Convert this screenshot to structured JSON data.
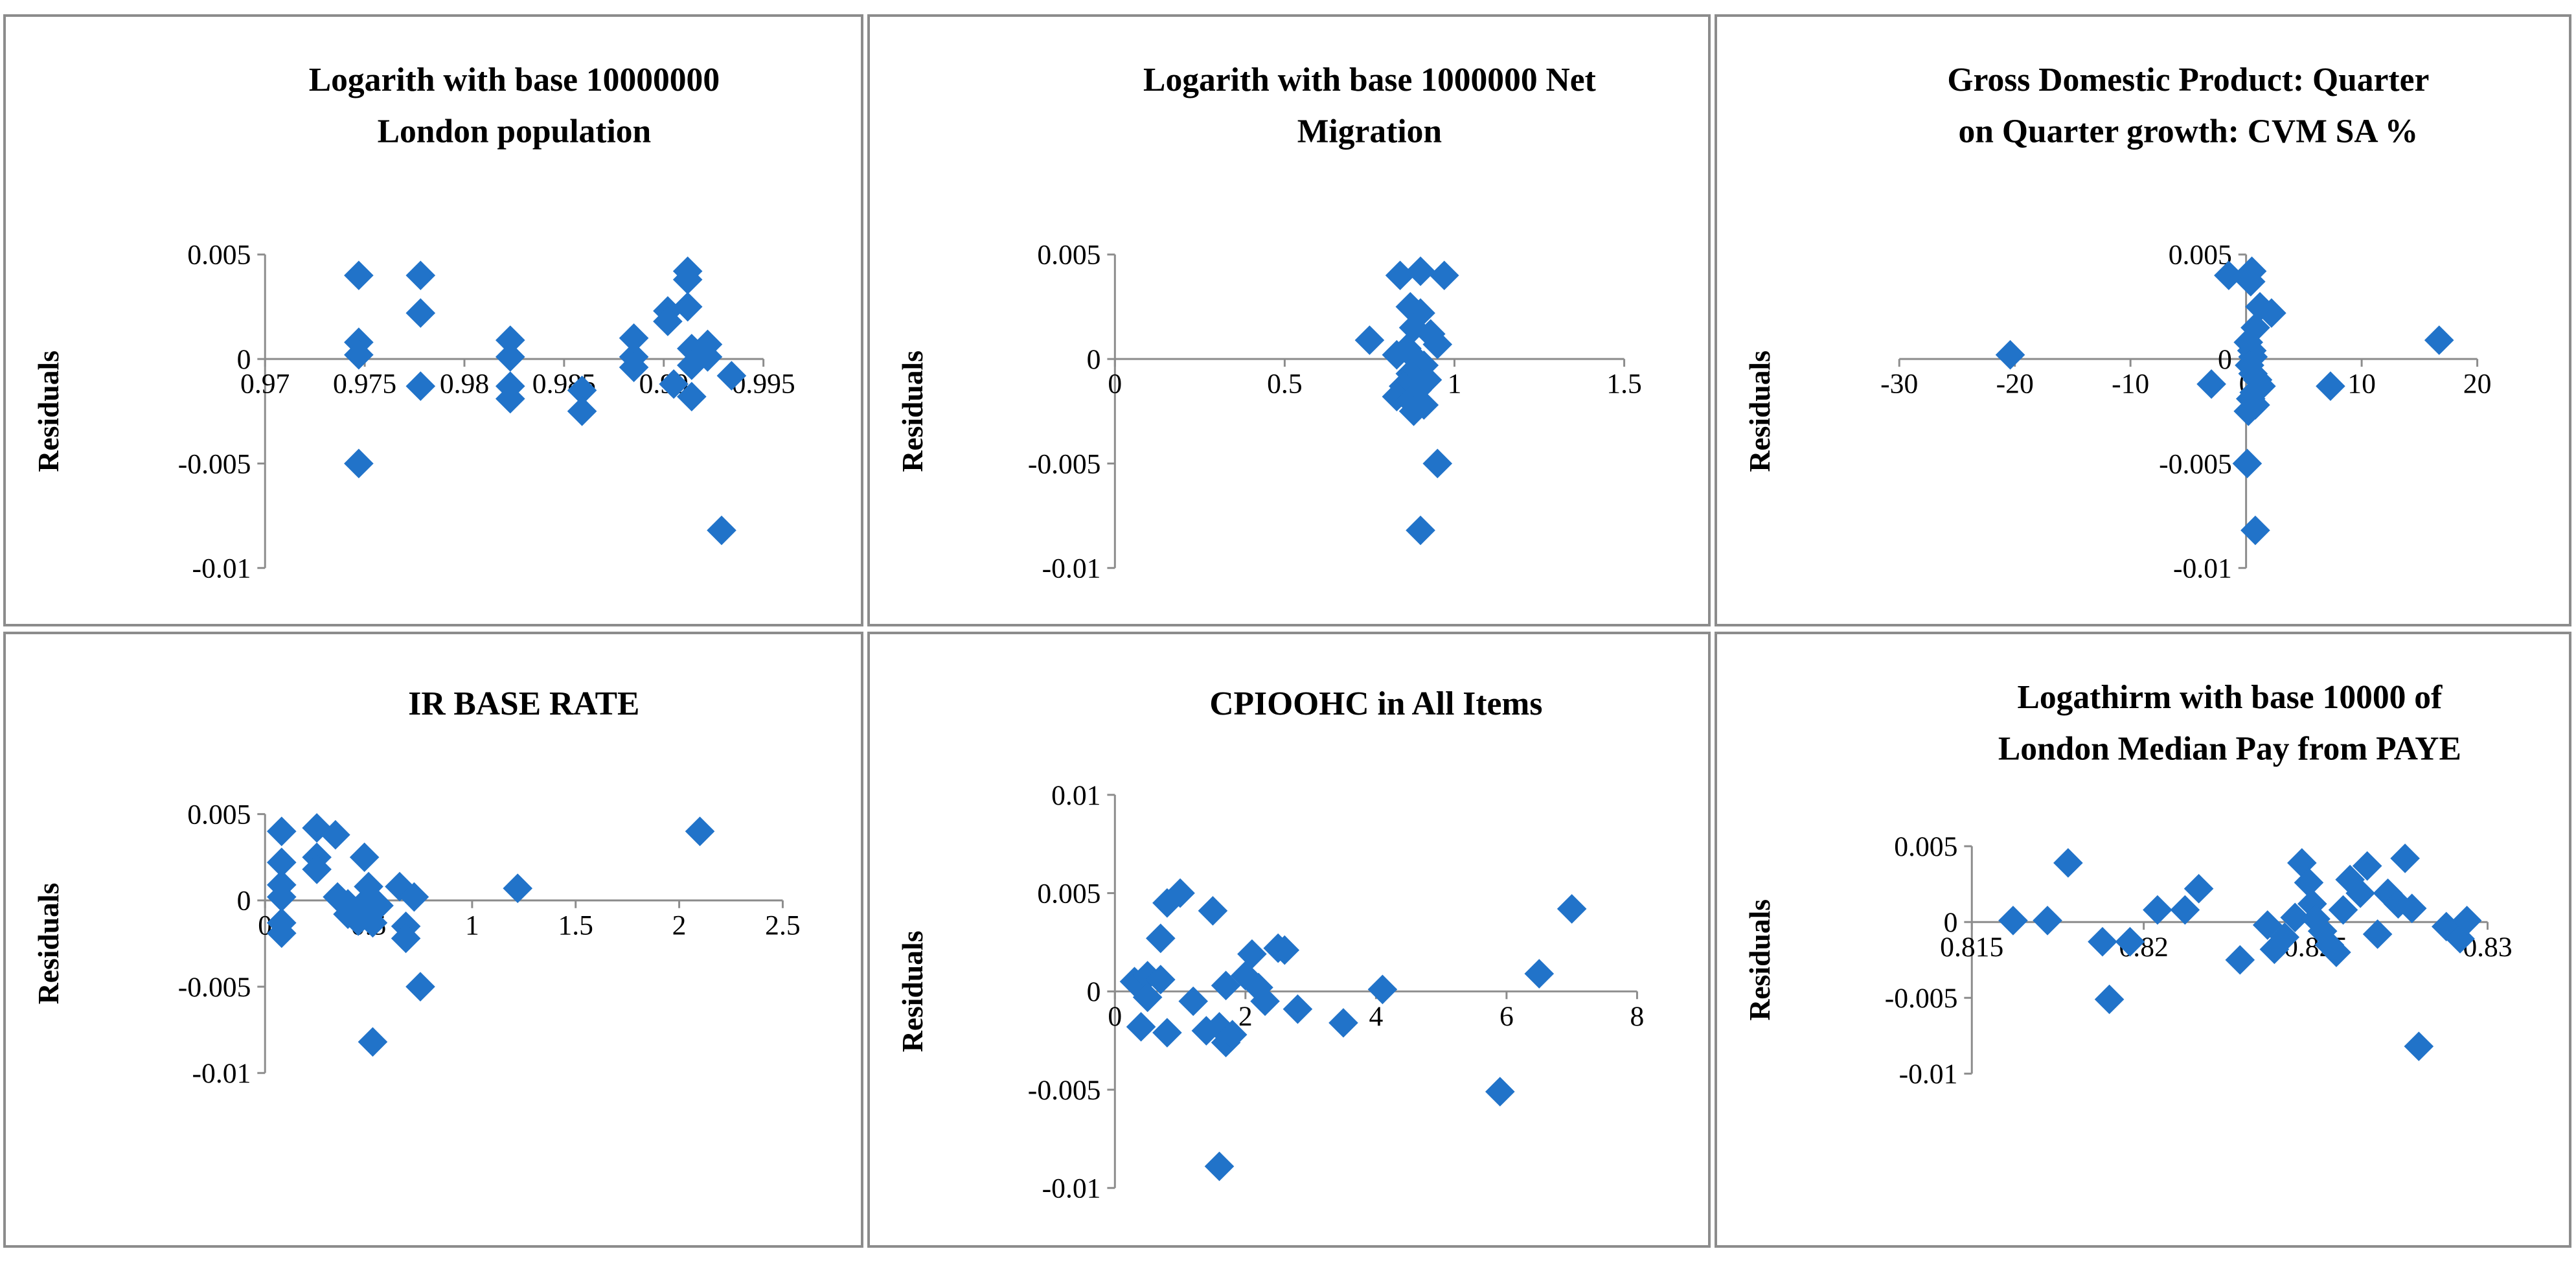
{
  "colors": {
    "marker": "#2173c9",
    "axis": "#8c8c8c",
    "border": "#8c8c8c"
  },
  "chart_data": [
    {
      "type": "scatter",
      "title_lines": [
        "Logarith with base 10000000",
        "London population"
      ],
      "ylabel": "Residuals",
      "xlim": [
        0.97,
        0.995
      ],
      "ylim": [
        -0.01,
        0.005
      ],
      "x_ticks": [
        0.97,
        0.975,
        0.98,
        0.985,
        0.99,
        0.995
      ],
      "x_tick_labels": [
        "0.97",
        "0.975",
        "0.98",
        "0.985",
        "0.99",
        "0.995"
      ],
      "y_ticks": [
        0.005,
        0,
        -0.005,
        -0.01
      ],
      "y_tick_labels": [
        "0.005",
        "0",
        "-0.005",
        "-0.01"
      ],
      "points": [
        [
          0.9747,
          0.004
        ],
        [
          0.9747,
          0.0008
        ],
        [
          0.9747,
          0.0002
        ],
        [
          0.9747,
          -0.005
        ],
        [
          0.9778,
          0.004
        ],
        [
          0.9778,
          0.0022
        ],
        [
          0.9778,
          -0.0013
        ],
        [
          0.9823,
          0.0009
        ],
        [
          0.9823,
          0.0001
        ],
        [
          0.9823,
          -0.0013
        ],
        [
          0.9823,
          -0.0019
        ],
        [
          0.9859,
          -0.0015
        ],
        [
          0.9859,
          -0.0025
        ],
        [
          0.9885,
          0.001
        ],
        [
          0.9885,
          0.0001
        ],
        [
          0.9885,
          -0.0004
        ],
        [
          0.9902,
          0.0023
        ],
        [
          0.9902,
          0.0018
        ],
        [
          0.9905,
          -0.0012
        ],
        [
          0.9912,
          0.0042
        ],
        [
          0.9912,
          0.0038
        ],
        [
          0.9912,
          0.0025
        ],
        [
          0.9914,
          0.0005
        ],
        [
          0.9914,
          -0.0003
        ],
        [
          0.9914,
          -0.0018
        ],
        [
          0.9922,
          0.0007
        ],
        [
          0.9922,
          0.0001
        ],
        [
          0.9934,
          -0.0008
        ],
        [
          0.9929,
          -0.0082
        ]
      ]
    },
    {
      "type": "scatter",
      "title_lines": [
        "Logarith with base 1000000 Net",
        "Migration"
      ],
      "ylabel": "Residuals",
      "xlim": [
        0,
        1.5
      ],
      "ylim": [
        -0.01,
        0.005
      ],
      "x_ticks": [
        0,
        0.5,
        1,
        1.5
      ],
      "x_tick_labels": [
        "0",
        "0.5",
        "1",
        "1.5"
      ],
      "y_ticks": [
        0.005,
        0,
        -0.005,
        -0.01
      ],
      "y_tick_labels": [
        "0.005",
        "0",
        "-0.005",
        "-0.01"
      ],
      "points": [
        [
          0.75,
          0.0009
        ],
        [
          0.84,
          0.004
        ],
        [
          0.9,
          0.0042
        ],
        [
          0.97,
          0.004
        ],
        [
          0.87,
          0.0025
        ],
        [
          0.9,
          0.0022
        ],
        [
          0.88,
          0.0015
        ],
        [
          0.93,
          0.0012
        ],
        [
          0.86,
          0.0005
        ],
        [
          0.95,
          0.0007
        ],
        [
          0.83,
          0.0002
        ],
        [
          0.88,
          0.0001
        ],
        [
          0.91,
          -0.0003
        ],
        [
          0.87,
          -0.0007
        ],
        [
          0.92,
          -0.001
        ],
        [
          0.85,
          -0.0013
        ],
        [
          0.89,
          -0.0015
        ],
        [
          0.83,
          -0.0018
        ],
        [
          0.87,
          -0.002
        ],
        [
          0.91,
          -0.0022
        ],
        [
          0.88,
          -0.0025
        ],
        [
          0.95,
          -0.005
        ],
        [
          0.9,
          -0.0082
        ]
      ]
    },
    {
      "type": "scatter",
      "title_lines": [
        "Gross Domestic Product: Quarter",
        "on Quarter growth: CVM SA %"
      ],
      "ylabel": "Residuals",
      "xlim": [
        -30,
        20
      ],
      "ylim": [
        -0.01,
        0.005
      ],
      "x_ticks": [
        -30,
        -20,
        -10,
        0,
        10,
        20
      ],
      "x_tick_labels": [
        "-30",
        "-20",
        "-10",
        "0",
        "10",
        "20"
      ],
      "y_ticks": [
        0.005,
        0,
        -0.005,
        -0.01
      ],
      "y_tick_labels": [
        "0.005",
        "0",
        "-0.005",
        "-0.01"
      ],
      "points": [
        [
          -20.4,
          0.0002
        ],
        [
          -3,
          -0.0012
        ],
        [
          -1.5,
          0.004
        ],
        [
          0.5,
          0.0042
        ],
        [
          0.4,
          0.0037
        ],
        [
          1.2,
          0.0025
        ],
        [
          2.2,
          0.0022
        ],
        [
          0.8,
          0.0015
        ],
        [
          0.2,
          0.0008
        ],
        [
          0.5,
          0.0004
        ],
        [
          0.6,
          0.0001
        ],
        [
          0.3,
          -0.0003
        ],
        [
          0.6,
          -0.0007
        ],
        [
          1.0,
          -0.001
        ],
        [
          1.3,
          -0.0013
        ],
        [
          0.7,
          -0.0016
        ],
        [
          0.4,
          -0.0019
        ],
        [
          0.8,
          -0.0022
        ],
        [
          0.2,
          -0.0025
        ],
        [
          0.1,
          -0.005
        ],
        [
          0.8,
          -0.0082
        ],
        [
          7.3,
          -0.0013
        ],
        [
          16.7,
          0.0009
        ]
      ]
    },
    {
      "type": "scatter",
      "title_lines": [
        "IR BASE RATE"
      ],
      "ylabel": "Residuals",
      "xlim": [
        0,
        2.5
      ],
      "ylim": [
        -0.01,
        0.005
      ],
      "x_ticks": [
        0,
        0.5,
        1,
        1.5,
        2,
        2.5
      ],
      "x_tick_labels": [
        "0",
        "0.5",
        "1",
        "1.5",
        "2",
        "2.5"
      ],
      "y_ticks": [
        0.005,
        0,
        -0.005,
        -0.01
      ],
      "y_tick_labels": [
        "0.005",
        "0",
        "-0.005",
        "-0.01"
      ],
      "points": [
        [
          0.08,
          0.004
        ],
        [
          0.08,
          0.0022
        ],
        [
          0.08,
          0.0009
        ],
        [
          0.08,
          0.0002
        ],
        [
          0.08,
          -0.0013
        ],
        [
          0.08,
          -0.0019
        ],
        [
          0.25,
          0.0042
        ],
        [
          0.25,
          0.0025
        ],
        [
          0.25,
          0.0018
        ],
        [
          0.34,
          0.0038
        ],
        [
          0.35,
          0.0002
        ],
        [
          0.4,
          -0.0002
        ],
        [
          0.4,
          -0.0008
        ],
        [
          0.45,
          -0.0012
        ],
        [
          0.48,
          0.0025
        ],
        [
          0.5,
          0.0008
        ],
        [
          0.5,
          -0.0005
        ],
        [
          0.5,
          0.0001
        ],
        [
          0.52,
          -0.0013
        ],
        [
          0.55,
          -0.0003
        ],
        [
          0.65,
          0.0008
        ],
        [
          0.68,
          -0.0015
        ],
        [
          0.68,
          -0.0022
        ],
        [
          0.72,
          0.0002
        ],
        [
          0.75,
          -0.005
        ],
        [
          0.52,
          -0.0082
        ],
        [
          1.22,
          0.0007
        ],
        [
          2.1,
          0.004
        ]
      ]
    },
    {
      "type": "scatter",
      "title_lines": [
        "CPIOOHC in All Items"
      ],
      "ylabel": "Residuals",
      "xlim": [
        0,
        8
      ],
      "ylim": [
        -0.01,
        0.01
      ],
      "x_ticks": [
        0,
        2,
        4,
        6,
        8
      ],
      "x_tick_labels": [
        "0",
        "2",
        "4",
        "6",
        "8"
      ],
      "y_ticks": [
        0.01,
        0.005,
        0,
        -0.005,
        -0.01
      ],
      "y_tick_labels": [
        "0.01",
        "0.005",
        "0",
        "-0.005",
        "-0.01"
      ],
      "points": [
        [
          0.3,
          0.0005
        ],
        [
          0.5,
          0.0008
        ],
        [
          0.5,
          -0.0003
        ],
        [
          0.4,
          -0.0018
        ],
        [
          0.7,
          0.0006
        ],
        [
          0.8,
          0.0045
        ],
        [
          1.0,
          0.005
        ],
        [
          0.7,
          0.0027
        ],
        [
          0.8,
          -0.0021
        ],
        [
          1.2,
          -0.0005
        ],
        [
          1.4,
          -0.002
        ],
        [
          1.5,
          0.0041
        ],
        [
          1.6,
          -0.0018
        ],
        [
          1.7,
          0.0003
        ],
        [
          1.7,
          -0.0026
        ],
        [
          1.8,
          -0.0022
        ],
        [
          2.0,
          0.0008
        ],
        [
          2.1,
          0.0019
        ],
        [
          2.2,
          0.0002
        ],
        [
          2.3,
          -0.0005
        ],
        [
          2.5,
          0.0022
        ],
        [
          2.6,
          0.0021
        ],
        [
          2.8,
          -0.0009
        ],
        [
          3.5,
          -0.0016
        ],
        [
          4.1,
          0.0001
        ],
        [
          5.9,
          -0.0051
        ],
        [
          6.5,
          0.0009
        ],
        [
          7.0,
          0.0042
        ],
        [
          1.6,
          -0.0089
        ]
      ]
    },
    {
      "type": "scatter",
      "title_lines": [
        "Logathirm with base 10000 of",
        "London Median Pay from PAYE"
      ],
      "ylabel": "Residuals",
      "xlim": [
        0.815,
        0.83
      ],
      "ylim": [
        -0.01,
        0.005
      ],
      "x_ticks": [
        0.815,
        0.82,
        0.825,
        0.83
      ],
      "x_tick_labels": [
        "0.815",
        "0.82",
        "0.825",
        "0.83"
      ],
      "y_ticks": [
        0.005,
        0,
        -0.005,
        -0.01
      ],
      "y_tick_labels": [
        "0.005",
        "0",
        "-0.005",
        "-0.01"
      ],
      "points": [
        [
          0.8162,
          0.0001
        ],
        [
          0.8172,
          0.0001
        ],
        [
          0.8178,
          0.0039
        ],
        [
          0.8188,
          -0.0013
        ],
        [
          0.819,
          -0.0051
        ],
        [
          0.8196,
          -0.0013
        ],
        [
          0.8204,
          0.0008
        ],
        [
          0.8212,
          0.0008
        ],
        [
          0.8216,
          0.0022
        ],
        [
          0.8228,
          -0.0025
        ],
        [
          0.8236,
          -0.0002
        ],
        [
          0.8238,
          -0.0018
        ],
        [
          0.8241,
          -0.001
        ],
        [
          0.8244,
          0.0003
        ],
        [
          0.8246,
          0.0039
        ],
        [
          0.8248,
          0.0026
        ],
        [
          0.8249,
          0.0012
        ],
        [
          0.825,
          0.0002
        ],
        [
          0.8252,
          -0.0006
        ],
        [
          0.8254,
          -0.0015
        ],
        [
          0.8256,
          -0.002
        ],
        [
          0.8258,
          0.0008
        ],
        [
          0.826,
          0.0028
        ],
        [
          0.8263,
          0.0019
        ],
        [
          0.8265,
          0.0037
        ],
        [
          0.8268,
          -0.0008
        ],
        [
          0.8271,
          0.0019
        ],
        [
          0.8274,
          0.0012
        ],
        [
          0.8276,
          0.0042
        ],
        [
          0.8278,
          0.0009
        ],
        [
          0.828,
          -0.0082
        ],
        [
          0.8288,
          -0.0003
        ],
        [
          0.8292,
          -0.0011
        ],
        [
          0.8294,
          0.0001
        ]
      ]
    }
  ]
}
